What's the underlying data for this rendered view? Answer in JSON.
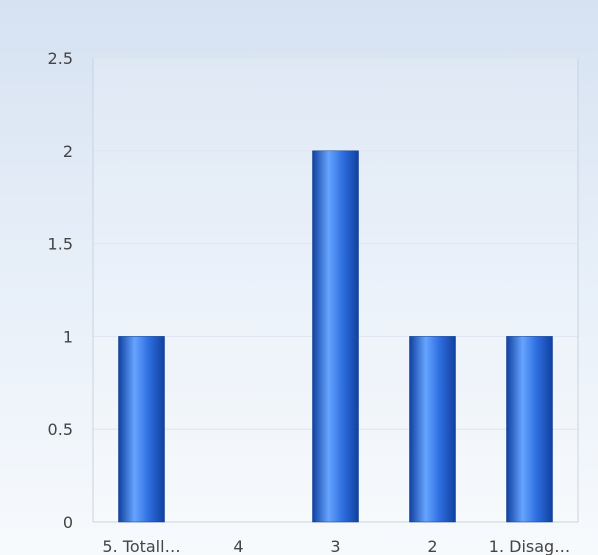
{
  "chart_data": {
    "type": "bar",
    "categories": [
      "5. Totall…",
      "4",
      "3",
      "2",
      "1. Disag…"
    ],
    "values": [
      1,
      0,
      2,
      1,
      1
    ],
    "ylim": [
      0,
      2.5
    ],
    "yticks": [
      0,
      0.5,
      1,
      1.5,
      2,
      2.5
    ],
    "ytick_labels": [
      "0",
      "0.5",
      "1",
      "1.5",
      "2",
      "2.5"
    ],
    "grid": true,
    "legend": "none",
    "colors": {
      "bar_dark": "#1040a0",
      "bar_mid": "#2f6fe0",
      "bar_light": "#66a4ff",
      "grid": "#dde6f0",
      "axis": "#c8d3e0",
      "tick_text": "#444444"
    }
  }
}
